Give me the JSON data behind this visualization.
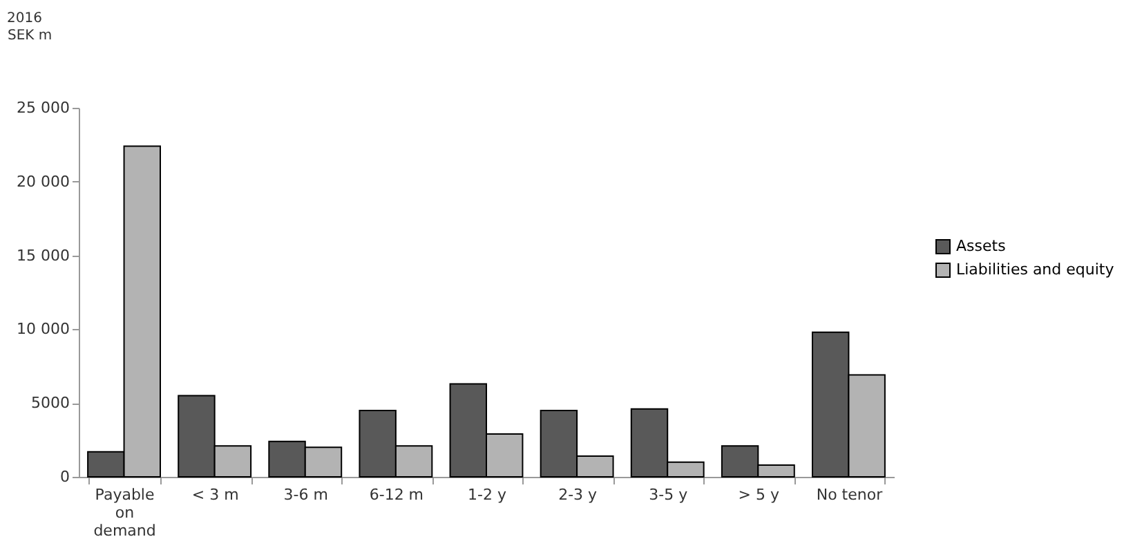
{
  "chart_data": {
    "type": "bar",
    "title": "2016",
    "ylabel": "SEK m",
    "categories": [
      "Payable on demand",
      "< 3 m",
      "3-6 m",
      "6-12 m",
      "1-2 y",
      "2-3 y",
      "3-5 y",
      "> 5 y",
      "No tenor"
    ],
    "series": [
      {
        "name": "Assets",
        "color": "#595959",
        "values": [
          1700,
          5500,
          2400,
          4500,
          6300,
          4500,
          4600,
          2100,
          9800
        ]
      },
      {
        "name": "Liabilities and equity",
        "color": "#b3b3b3",
        "values": [
          22400,
          2100,
          2000,
          2100,
          2900,
          1400,
          1000,
          800,
          6900
        ]
      }
    ],
    "ylim": [
      0,
      25000
    ],
    "yticks": [
      0,
      5000,
      {
        "value": 10000,
        "label": "10 000"
      },
      {
        "value": 15000,
        "label": "15 000"
      },
      {
        "value": 20000,
        "label": "20 000"
      },
      {
        "value": 25000,
        "label": "25 000"
      }
    ],
    "grid": false,
    "legend": "right"
  }
}
